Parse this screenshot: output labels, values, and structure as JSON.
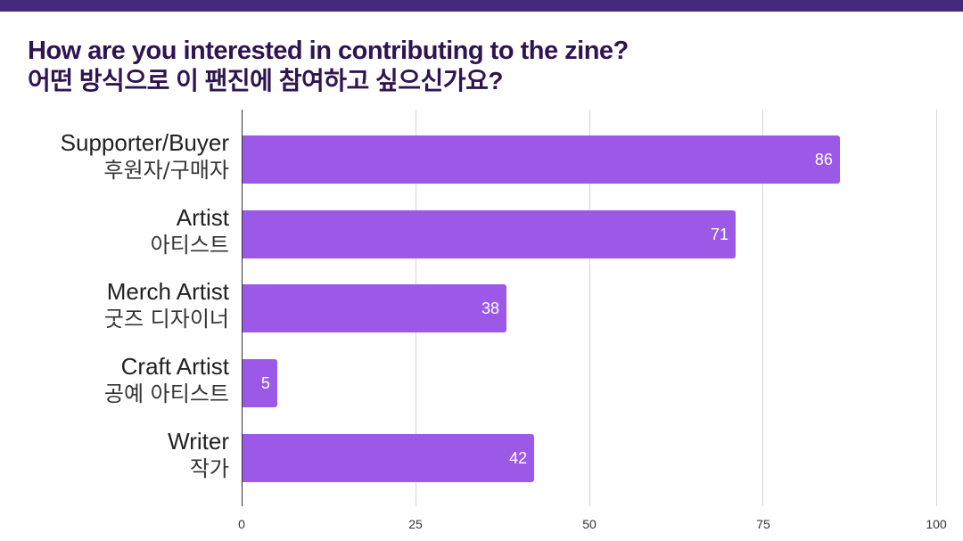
{
  "title": {
    "en": "How are you interested in contributing to the zine?",
    "ko": "어떤 방식으로 이 팬진에 참여하고 싶으신가요?"
  },
  "colors": {
    "topbar": "#45297a",
    "title": "#2e1450",
    "bar": "#9c59e8"
  },
  "chart_data": {
    "type": "bar",
    "orientation": "horizontal",
    "title": "How are you interested in contributing to the zine? / 어떤 방식으로 이 팬진에 참여하고 싶으신가요?",
    "categories": [
      {
        "en": "Supporter/Buyer",
        "ko": "후원자/구매자"
      },
      {
        "en": "Artist",
        "ko": "아티스트"
      },
      {
        "en": "Merch Artist",
        "ko": "굿즈 디자이너"
      },
      {
        "en": "Craft Artist",
        "ko": "공예 아티스트"
      },
      {
        "en": "Writer",
        "ko": "작가"
      }
    ],
    "values": [
      86,
      71,
      38,
      5,
      42
    ],
    "value_labels": [
      "86",
      "71",
      "38",
      "5",
      "42"
    ],
    "xlabel": "",
    "ylabel": "",
    "xlim": [
      0,
      100
    ],
    "xticks": [
      "0",
      "25",
      "50",
      "75",
      "100"
    ],
    "grid": true,
    "legend": "none"
  }
}
